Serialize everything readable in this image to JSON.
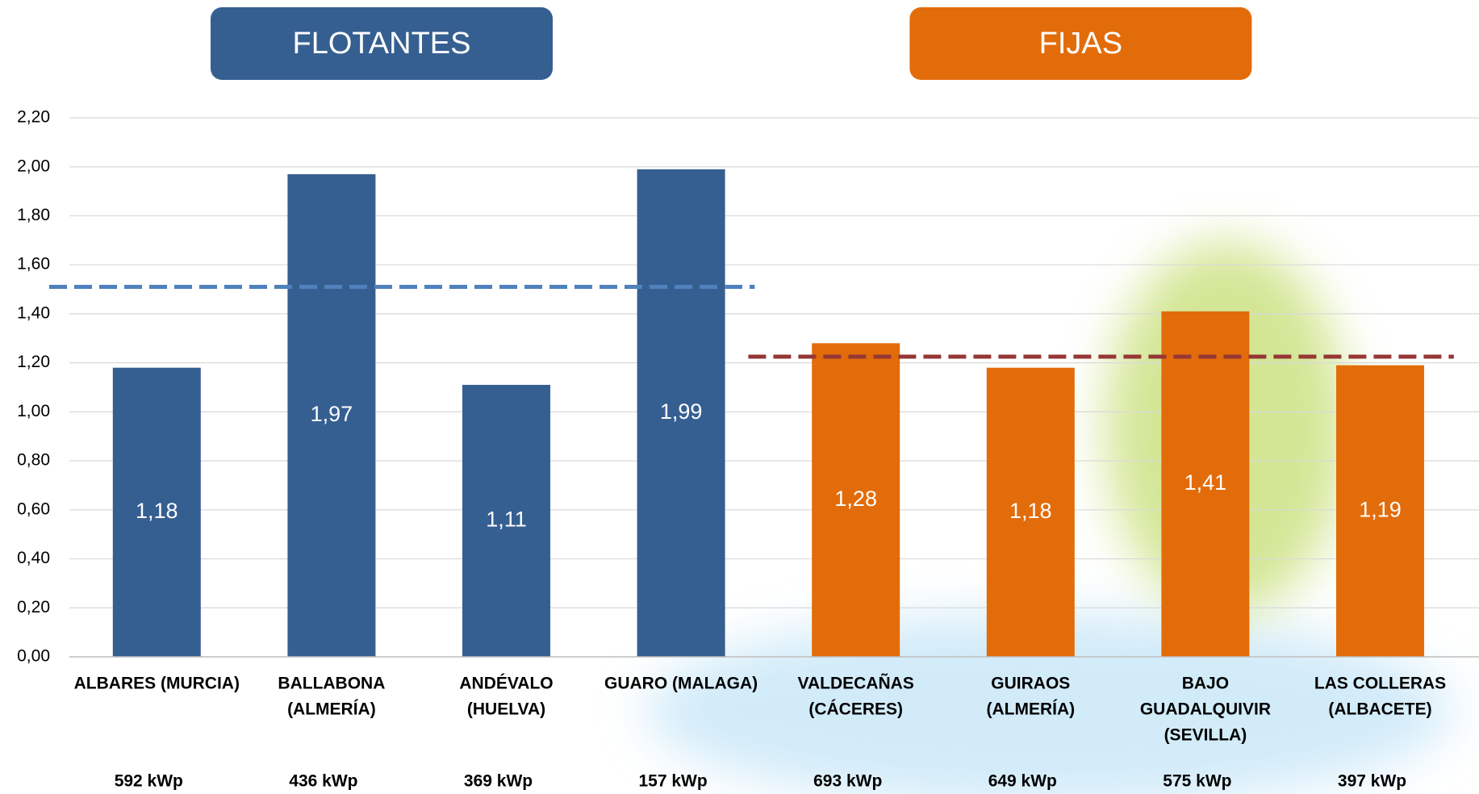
{
  "chart_data": {
    "type": "bar",
    "ylim": [
      0,
      2.2
    ],
    "yticks": [
      {
        "value": 0,
        "label": "0,00"
      },
      {
        "value": 0.2,
        "label": "0,20"
      },
      {
        "value": 0.4,
        "label": "0,40"
      },
      {
        "value": 0.6,
        "label": "0,60"
      },
      {
        "value": 0.8,
        "label": "0,80"
      },
      {
        "value": 1,
        "label": "1,00"
      },
      {
        "value": 1.2,
        "label": "1,20"
      },
      {
        "value": 1.4,
        "label": "1,40"
      },
      {
        "value": 1.6,
        "label": "1,60"
      },
      {
        "value": 1.8,
        "label": "1,80"
      },
      {
        "value": 2,
        "label": "2,00"
      },
      {
        "value": 2.2,
        "label": "2,20"
      }
    ],
    "grid": true,
    "groups": [
      {
        "name": "FLOTANTES",
        "color": "#365f91",
        "average": 1.51,
        "average_color": "#4f81bd",
        "categories": [
          [
            "ALBARES (MURCIA)"
          ],
          [
            "BALLABONA",
            "(ALMERÍA)"
          ],
          [
            "ANDÉVALO",
            "(HUELVA)"
          ],
          [
            "GUARO (MALAGA)"
          ]
        ],
        "values": [
          1.18,
          1.97,
          1.11,
          1.99
        ],
        "value_labels": [
          "1,18",
          "1,97",
          "1,11",
          "1,99"
        ],
        "capacities": [
          "592 kWp",
          "436 kWp",
          "369 kWp",
          "157 kWp"
        ]
      },
      {
        "name": "FIJAS",
        "color": "#e36c0a",
        "average": 1.225,
        "average_color": "#953735",
        "categories": [
          [
            "VALDECAÑAS",
            "(CÁCERES)"
          ],
          [
            "GUIRAOS",
            "(ALMERÍA)"
          ],
          [
            "BAJO",
            "GUADALQUIVIR",
            "(SEVILLA)"
          ],
          [
            "LAS COLLERAS",
            "(ALBACETE)"
          ]
        ],
        "values": [
          1.28,
          1.18,
          1.41,
          1.19
        ],
        "value_labels": [
          "1,28",
          "1,18",
          "1,41",
          "1,19"
        ],
        "capacities": [
          "693 kWp",
          "649 kWp",
          "575 kWp",
          "397 kWp"
        ]
      }
    ]
  }
}
